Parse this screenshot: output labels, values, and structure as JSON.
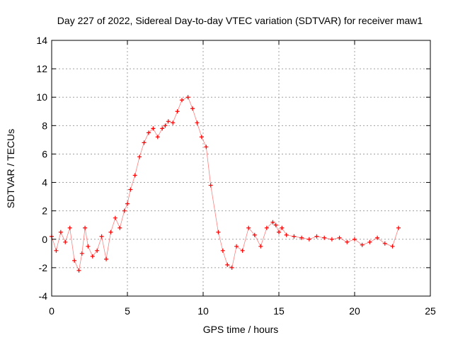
{
  "chart_data": {
    "type": "scatter",
    "title": "Day 227 of 2022, Sidereal Day-to-day VTEC variation (SDTVAR) for receiver maw1",
    "xlabel": "GPS time / hours",
    "ylabel": "SDTVAR / TECUs",
    "xlim": [
      0,
      25
    ],
    "ylim": [
      -4,
      14
    ],
    "xticks": [
      0,
      5,
      10,
      15,
      20,
      25
    ],
    "yticks": [
      -4,
      -2,
      0,
      2,
      4,
      6,
      8,
      10,
      12,
      14
    ],
    "grid": true,
    "marker": "+",
    "colors": {
      "series": "#ff0000",
      "grid": "#a0a0a0",
      "axis": "#000000"
    },
    "series": [
      {
        "name": "SDTVAR",
        "x": [
          0.0,
          0.3,
          0.6,
          0.9,
          1.2,
          1.5,
          1.8,
          2.0,
          2.2,
          2.4,
          2.7,
          3.0,
          3.3,
          3.6,
          3.9,
          4.2,
          4.5,
          4.8,
          5.0,
          5.2,
          5.5,
          5.8,
          6.1,
          6.4,
          6.7,
          7.0,
          7.3,
          7.5,
          7.7,
          8.0,
          8.3,
          8.6,
          9.0,
          9.3,
          9.6,
          9.9,
          10.2,
          10.5,
          11.0,
          11.3,
          11.6,
          11.9,
          12.2,
          12.6,
          13.0,
          13.4,
          13.8,
          14.2,
          14.6,
          14.8,
          15.0,
          15.2,
          15.5,
          16.0,
          16.5,
          17.0,
          17.5,
          18.0,
          18.5,
          19.0,
          19.5,
          20.0,
          20.5,
          21.0,
          21.5,
          22.0,
          22.5,
          22.9
        ],
        "y": [
          0.2,
          -0.8,
          0.5,
          -0.2,
          0.8,
          -1.5,
          -2.2,
          -1.0,
          0.8,
          -0.5,
          -1.2,
          -0.8,
          0.2,
          -1.4,
          0.5,
          1.5,
          0.8,
          2.0,
          2.5,
          3.5,
          4.5,
          5.8,
          6.8,
          7.5,
          7.8,
          7.2,
          7.8,
          8.0,
          8.3,
          8.2,
          9.0,
          9.8,
          10.0,
          9.2,
          8.2,
          7.2,
          6.5,
          3.8,
          0.5,
          -0.8,
          -1.8,
          -2.0,
          -0.5,
          -0.8,
          0.8,
          0.3,
          -0.5,
          0.8,
          1.2,
          1.0,
          0.5,
          0.8,
          0.3,
          0.2,
          0.1,
          0.0,
          0.2,
          0.1,
          0.0,
          0.1,
          -0.2,
          0.0,
          -0.4,
          -0.2,
          0.1,
          -0.3,
          -0.5,
          0.8
        ]
      }
    ]
  }
}
